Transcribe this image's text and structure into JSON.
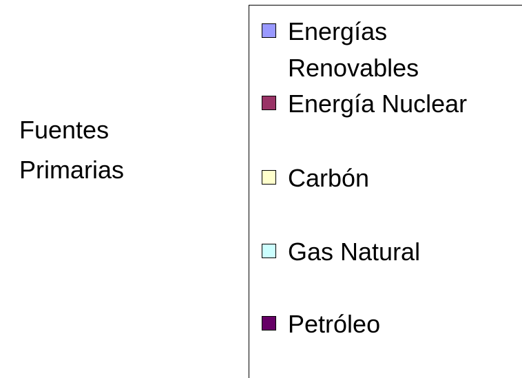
{
  "chart_data": {
    "type": "bar",
    "categories": [
      "Fuentes Primarias"
    ],
    "series": [
      {
        "name": "Energías Renovables",
        "color": "#9999ff"
      },
      {
        "name": "Energía Nuclear",
        "color": "#993366"
      },
      {
        "name": "Carbón",
        "color": "#ffffcc"
      },
      {
        "name": "Gas Natural",
        "color": "#ccffff"
      },
      {
        "name": "Petróleo",
        "color": "#660066"
      }
    ]
  }
}
